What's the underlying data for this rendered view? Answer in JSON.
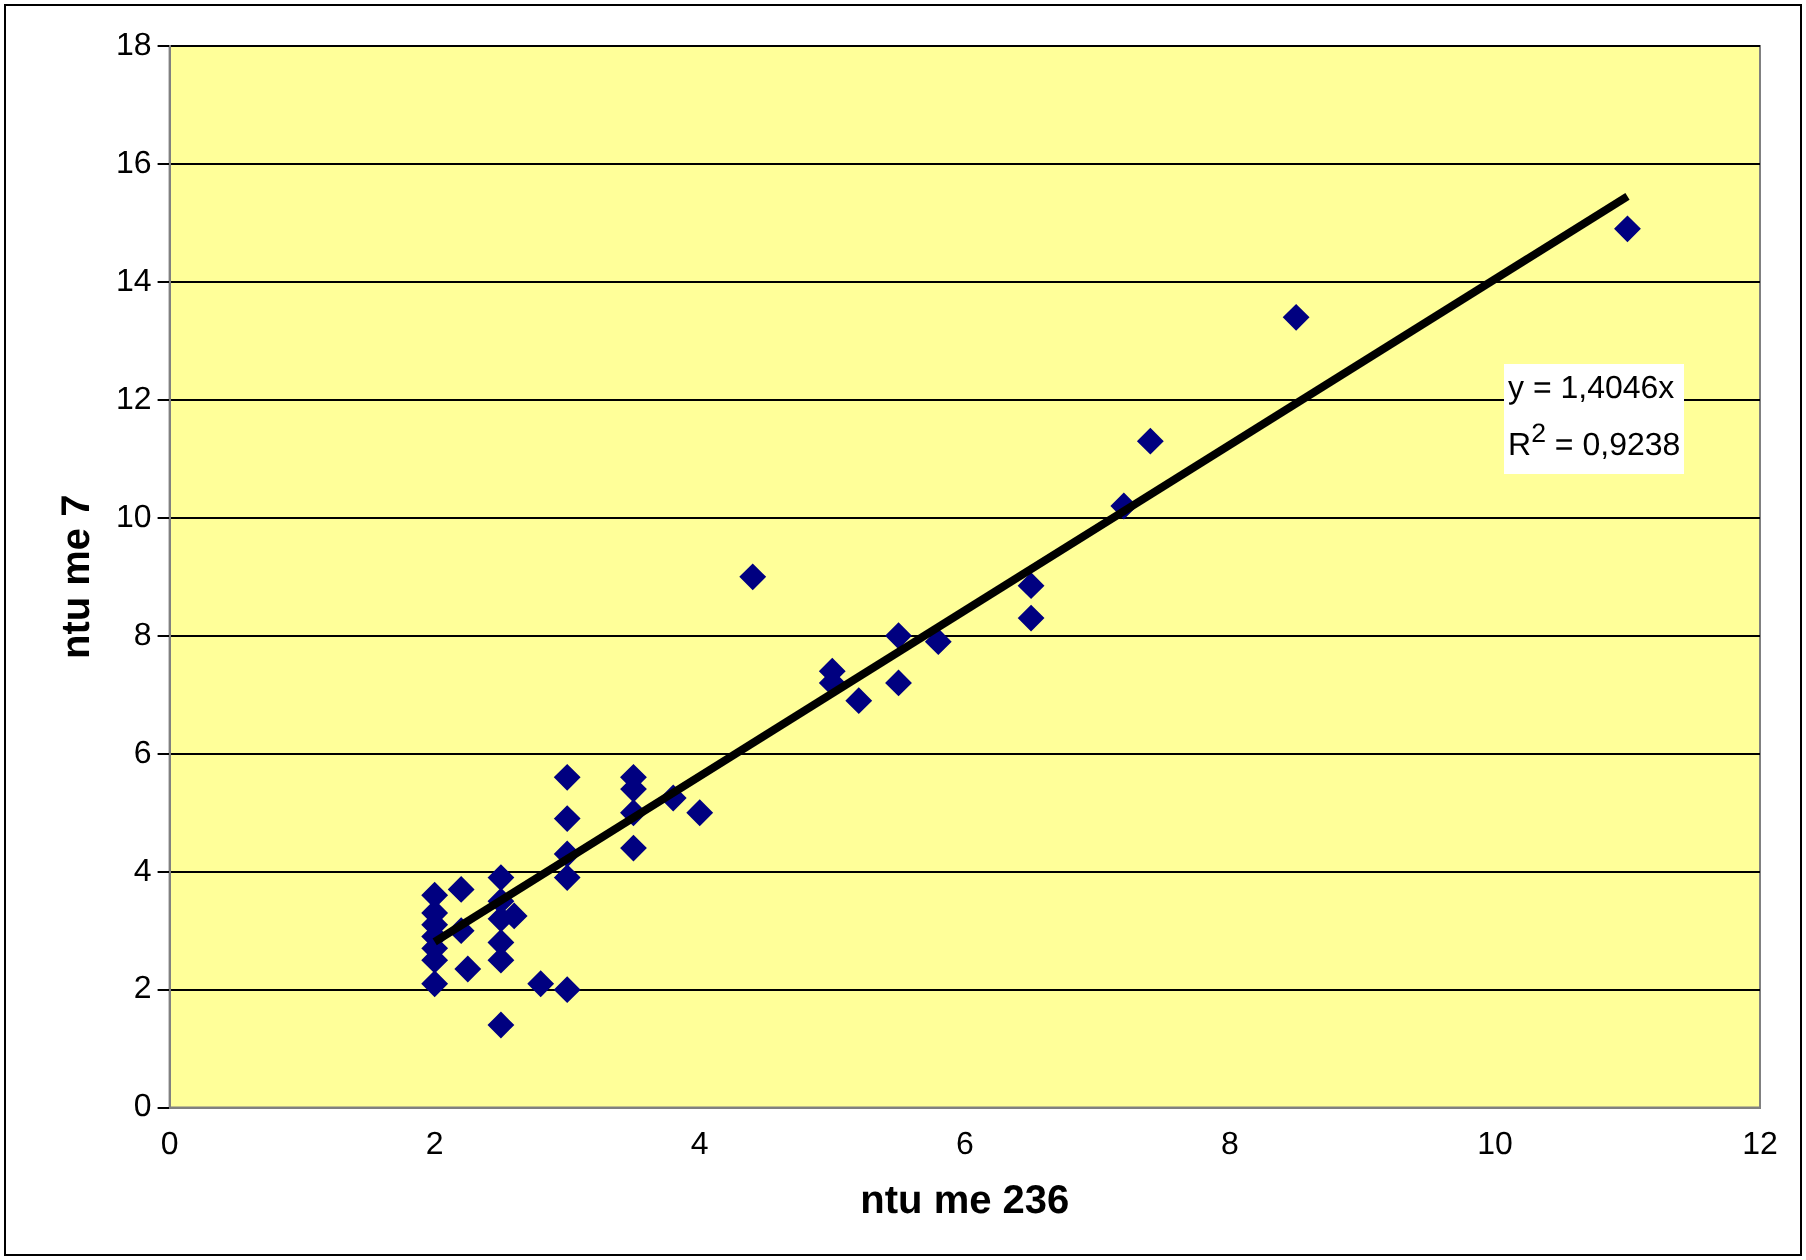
{
  "chart_data": {
    "type": "scatter",
    "xlabel": "ntu me 236",
    "ylabel": "ntu me 7",
    "xlim": [
      0,
      12
    ],
    "xticks": [
      0,
      2,
      4,
      6,
      8,
      10,
      12
    ],
    "ylim": [
      0,
      18
    ],
    "yticks": [
      0,
      2,
      4,
      6,
      8,
      10,
      12,
      14,
      16,
      18
    ],
    "grid": "y",
    "legend": false,
    "marker": "diamond",
    "series": [
      {
        "type": "scatter",
        "color": "#000080",
        "x": [
          2,
          2,
          2,
          2,
          2,
          2,
          2,
          2.2,
          2.2,
          2.25,
          2.5,
          2.5,
          2.5,
          2.5,
          2.5,
          2.6,
          2.5,
          2.8,
          3,
          3,
          3,
          3,
          3,
          3.5,
          3.5,
          3.5,
          3.5,
          3.8,
          4,
          4.4,
          5,
          5,
          5.2,
          5.5,
          5.5,
          5.8,
          6.5,
          6.5,
          7.2,
          7.4,
          8.5,
          11
        ],
        "values": [
          3.6,
          3.3,
          3.1,
          2.9,
          2.7,
          2.5,
          2.1,
          3.7,
          3.0,
          2.35,
          3.9,
          3.5,
          3.2,
          2.8,
          2.5,
          3.25,
          1.4,
          2.1,
          2.0,
          3.9,
          4.3,
          4.9,
          5.6,
          5.6,
          5.4,
          5.0,
          4.4,
          5.25,
          5.0,
          9.0,
          7.4,
          7.2,
          6.9,
          8.0,
          7.2,
          7.9,
          8.85,
          8.3,
          10.2,
          11.3,
          13.4,
          14.9
        ]
      },
      {
        "type": "line",
        "color": "#000000",
        "marker": "none",
        "line_style": "solid",
        "x": [
          2,
          11
        ],
        "values": [
          2.81,
          15.45
        ]
      }
    ],
    "annotations": [
      "y = 1,4046x",
      "R$^{2}$ = 0,9238"
    ]
  }
}
